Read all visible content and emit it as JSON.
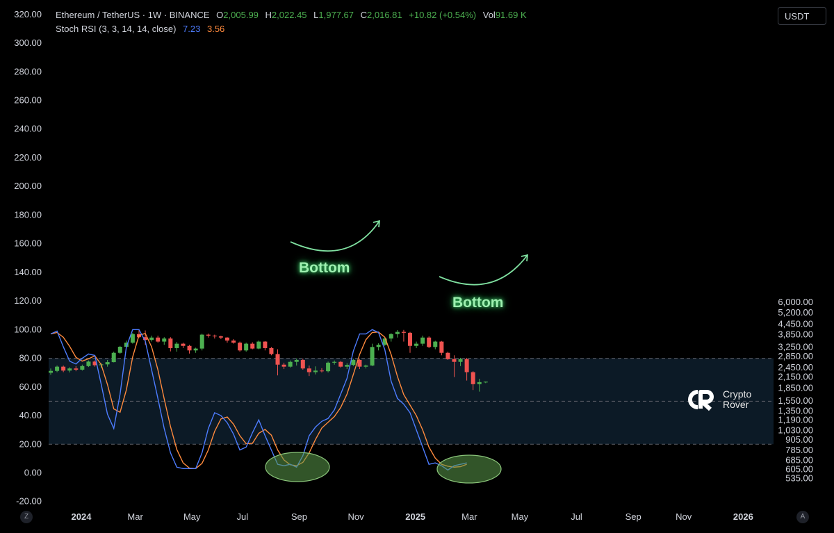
{
  "header": {
    "line1": {
      "symbol": "Ethereum / TetherUS · 1W · BINANCE",
      "o_label": "O",
      "o_value": "2,005.99",
      "h_label": "H",
      "h_value": "2,022.45",
      "l_label": "L",
      "l_value": "1,977.67",
      "c_label": "C",
      "c_value": "2,016.81",
      "change": "+10.82 (+0.54%)",
      "vol_label": "Vol",
      "vol_value": "91.69 K"
    },
    "line2": {
      "indicator": "Stoch RSI (3, 3, 14, 14, close)",
      "k_value": "7.23",
      "d_value": "3.56"
    }
  },
  "currency_button": "USDT",
  "watermark": {
    "line1": "Crypto",
    "line2": "Rover"
  },
  "annotations": {
    "bottom1": "Bottom",
    "bottom2": "Bottom"
  },
  "corner_left": "Z",
  "corner_right": "A",
  "colors": {
    "up": "#4caf50",
    "down": "#f05350",
    "k_line": "#4d7cfe",
    "d_line": "#ff8a3d",
    "band": "#0c1a26",
    "ellipse": "#5b9a4a",
    "arrow": "#7fe0a0"
  },
  "chart_data": {
    "type": "candlestick",
    "left_axis": {
      "ticks": [
        "320.00",
        "300.00",
        "280.00",
        "260.00",
        "240.00",
        "220.00",
        "200.00",
        "180.00",
        "160.00",
        "140.00",
        "120.00",
        "100.00",
        "80.00",
        "60.00",
        "40.00",
        "20.00",
        "0.00",
        "-20.00"
      ],
      "range": [
        -20,
        320
      ]
    },
    "right_axis": {
      "ticks": [
        "6,000.00",
        "5,200.00",
        "4,450.00",
        "3,850.00",
        "3,250.00",
        "2,850.00",
        "2,450.00",
        "2,150.00",
        "1,850.00",
        "1,550.00",
        "1,350.00",
        "1,190.00",
        "1,030.00",
        "905.00",
        "785.00",
        "685.00",
        "605.00",
        "535.00"
      ],
      "log_scale": true,
      "unit": "USDT"
    },
    "x_axis": {
      "labels": [
        "2024",
        "Mar",
        "May",
        "Jul",
        "Sep",
        "Nov",
        "2025",
        "Mar",
        "May",
        "Jul",
        "Sep",
        "Nov",
        "2026"
      ],
      "bold": [
        "2024",
        "2025",
        "2026"
      ],
      "label_weeks": [
        0,
        9,
        18,
        26,
        35,
        44,
        53,
        62,
        70,
        79,
        88,
        96,
        105
      ]
    },
    "candles_ohlc": [
      [
        2280,
        2420,
        2220,
        2340
      ],
      [
        2340,
        2520,
        2300,
        2480
      ],
      [
        2480,
        2520,
        2300,
        2350
      ],
      [
        2350,
        2460,
        2290,
        2420
      ],
      [
        2420,
        2500,
        2330,
        2380
      ],
      [
        2380,
        2550,
        2350,
        2500
      ],
      [
        2500,
        2700,
        2470,
        2660
      ],
      [
        2660,
        2700,
        2480,
        2530
      ],
      [
        2530,
        2610,
        2440,
        2560
      ],
      [
        2560,
        2720,
        2480,
        2640
      ],
      [
        2640,
        3050,
        2630,
        3000
      ],
      [
        3000,
        3300,
        2960,
        3260
      ],
      [
        3260,
        3550,
        3200,
        3450
      ],
      [
        3450,
        3950,
        3400,
        3880
      ],
      [
        3880,
        4100,
        3680,
        3720
      ],
      [
        3720,
        4080,
        3350,
        3580
      ],
      [
        3580,
        3800,
        3500,
        3700
      ],
      [
        3700,
        3800,
        3450,
        3500
      ],
      [
        3500,
        3720,
        3350,
        3650
      ],
      [
        3650,
        3720,
        3060,
        3200
      ],
      [
        3200,
        3480,
        3050,
        3400
      ],
      [
        3400,
        3450,
        3200,
        3300
      ],
      [
        3300,
        3350,
        2970,
        3100
      ],
      [
        3100,
        3220,
        3000,
        3180
      ],
      [
        3180,
        3900,
        3100,
        3850
      ],
      [
        3850,
        3910,
        3700,
        3800
      ],
      [
        3800,
        3850,
        3650,
        3760
      ],
      [
        3760,
        3800,
        3620,
        3700
      ],
      [
        3700,
        3720,
        3450,
        3550
      ],
      [
        3550,
        3620,
        3400,
        3450
      ],
      [
        3450,
        3500,
        3050,
        3100
      ],
      [
        3100,
        3450,
        3050,
        3400
      ],
      [
        3400,
        3470,
        3150,
        3180
      ],
      [
        3180,
        3550,
        3150,
        3500
      ],
      [
        3500,
        3520,
        3100,
        3200
      ],
      [
        3200,
        3250,
        2900,
        2950
      ],
      [
        2950,
        3150,
        2200,
        2550
      ],
      [
        2550,
        2620,
        2400,
        2480
      ],
      [
        2480,
        2700,
        2450,
        2650
      ],
      [
        2650,
        2780,
        2520,
        2720
      ],
      [
        2720,
        2770,
        2380,
        2420
      ],
      [
        2420,
        2520,
        2180,
        2300
      ],
      [
        2300,
        2490,
        2230,
        2350
      ],
      [
        2350,
        2430,
        2290,
        2330
      ],
      [
        2330,
        2660,
        2290,
        2620
      ],
      [
        2620,
        2700,
        2550,
        2650
      ],
      [
        2650,
        2680,
        2450,
        2480
      ],
      [
        2480,
        2600,
        2400,
        2540
      ],
      [
        2540,
        2760,
        2500,
        2720
      ],
      [
        2720,
        2760,
        2400,
        2480
      ],
      [
        2480,
        2550,
        2420,
        2520
      ],
      [
        2520,
        3400,
        2500,
        3250
      ],
      [
        3250,
        3420,
        3100,
        3350
      ],
      [
        3350,
        3700,
        3300,
        3650
      ],
      [
        3650,
        3930,
        3500,
        3880
      ],
      [
        3880,
        4100,
        3700,
        4000
      ],
      [
        4000,
        4110,
        3500,
        3950
      ],
      [
        3950,
        4000,
        3000,
        3300
      ],
      [
        3300,
        3500,
        3200,
        3400
      ],
      [
        3400,
        3800,
        3300,
        3700
      ],
      [
        3700,
        3760,
        3200,
        3250
      ],
      [
        3250,
        3540,
        3150,
        3500
      ],
      [
        3500,
        3530,
        2900,
        3000
      ],
      [
        3000,
        3050,
        2720,
        2750
      ],
      [
        2750,
        2900,
        2150,
        2650
      ],
      [
        2650,
        2800,
        2500,
        2750
      ],
      [
        2750,
        2800,
        2050,
        2300
      ],
      [
        2300,
        2330,
        1800,
        1950
      ],
      [
        1950,
        2100,
        1760,
        2006
      ],
      [
        2006,
        2022,
        1978,
        2017
      ]
    ],
    "stoch_rsi": {
      "k_name": "K",
      "d_name": "D",
      "k": [
        97,
        99,
        88,
        78,
        76,
        80,
        83,
        82,
        62,
        41,
        31,
        55,
        88,
        100,
        100,
        92,
        72,
        52,
        31,
        14,
        4,
        3,
        3,
        3,
        14,
        31,
        42,
        40,
        35,
        27,
        16,
        18,
        28,
        37,
        26,
        16,
        6,
        5,
        6,
        4,
        12,
        26,
        32,
        36,
        38,
        44,
        55,
        66,
        85,
        97,
        97,
        100,
        98,
        86,
        64,
        52,
        48,
        42,
        30,
        18,
        6,
        7,
        5,
        2,
        5,
        6,
        7
      ]
    }
  }
}
